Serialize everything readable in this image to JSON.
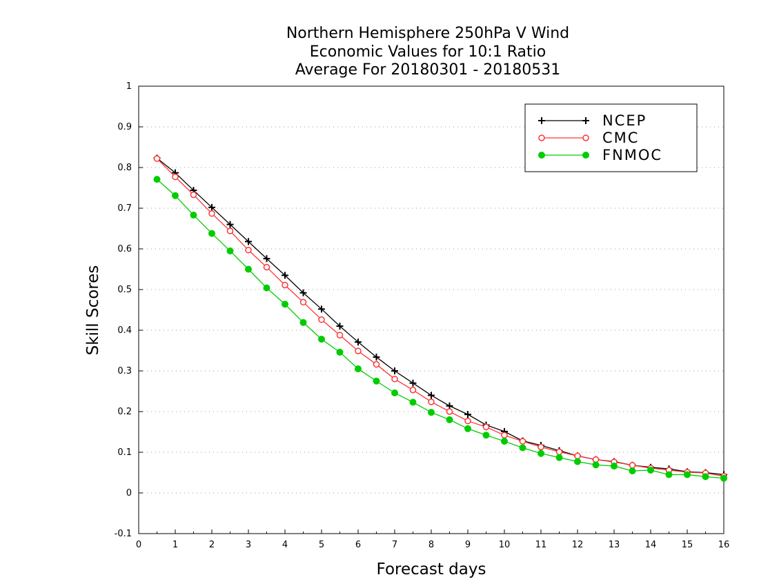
{
  "chart_data": {
    "type": "line",
    "title": [
      "Northern Hemisphere 250hPa V Wind",
      "Economic Values for 10:1 Ratio",
      "Average For 20180301 - 20180531"
    ],
    "xlabel": "Forecast days",
    "ylabel": "Skill Scores",
    "xlim": [
      0,
      16
    ],
    "ylim": [
      -0.1,
      1
    ],
    "xticks": [
      0,
      1,
      2,
      3,
      4,
      5,
      6,
      7,
      8,
      9,
      10,
      11,
      12,
      13,
      14,
      15,
      16
    ],
    "yticks": [
      -0.1,
      0,
      0.1,
      0.2,
      0.3,
      0.4,
      0.5,
      0.6,
      0.7,
      0.8,
      0.9,
      1
    ],
    "ytick_labels": [
      "-0.1",
      "0",
      "0.1",
      "0.2",
      "0.3",
      "0.4",
      "0.5",
      "0.6",
      "0.7",
      "0.8",
      "0.9",
      "1"
    ],
    "grid": "horizontal dotted",
    "legend_position": "top-right",
    "x": [
      0.5,
      1,
      1.5,
      2,
      2.5,
      3,
      3.5,
      4,
      4.5,
      5,
      5.5,
      6,
      6.5,
      7,
      7.5,
      8,
      8.5,
      9,
      9.5,
      10,
      10.5,
      11,
      11.5,
      12,
      12.5,
      13,
      13.5,
      14,
      14.5,
      15,
      15.5,
      16
    ],
    "series": [
      {
        "name": "NCEP",
        "color": "#000000",
        "marker": "plus",
        "values": [
          0.823,
          0.787,
          0.744,
          0.702,
          0.66,
          0.618,
          0.576,
          0.535,
          0.492,
          0.452,
          0.41,
          0.371,
          0.334,
          0.3,
          0.27,
          0.24,
          0.214,
          0.193,
          0.167,
          0.151,
          0.128,
          0.117,
          0.104,
          0.091,
          0.082,
          0.077,
          0.068,
          0.063,
          0.059,
          0.052,
          0.05,
          0.045
        ]
      },
      {
        "name": "CMC",
        "color": "#ff3333",
        "marker": "open-circle",
        "values": [
          0.822,
          0.777,
          0.733,
          0.687,
          0.644,
          0.597,
          0.555,
          0.511,
          0.469,
          0.426,
          0.388,
          0.349,
          0.316,
          0.28,
          0.253,
          0.224,
          0.2,
          0.177,
          0.162,
          0.142,
          0.127,
          0.113,
          0.101,
          0.091,
          0.082,
          0.076,
          0.068,
          0.061,
          0.056,
          0.051,
          0.049,
          0.041
        ]
      },
      {
        "name": "FNMOC",
        "color": "#00cc00",
        "marker": "filled-circle",
        "values": [
          0.771,
          0.731,
          0.683,
          0.638,
          0.595,
          0.55,
          0.504,
          0.464,
          0.419,
          0.378,
          0.346,
          0.305,
          0.275,
          0.246,
          0.223,
          0.198,
          0.18,
          0.158,
          0.142,
          0.127,
          0.111,
          0.097,
          0.087,
          0.077,
          0.069,
          0.066,
          0.054,
          0.056,
          0.045,
          0.045,
          0.04,
          0.036
        ]
      }
    ]
  }
}
